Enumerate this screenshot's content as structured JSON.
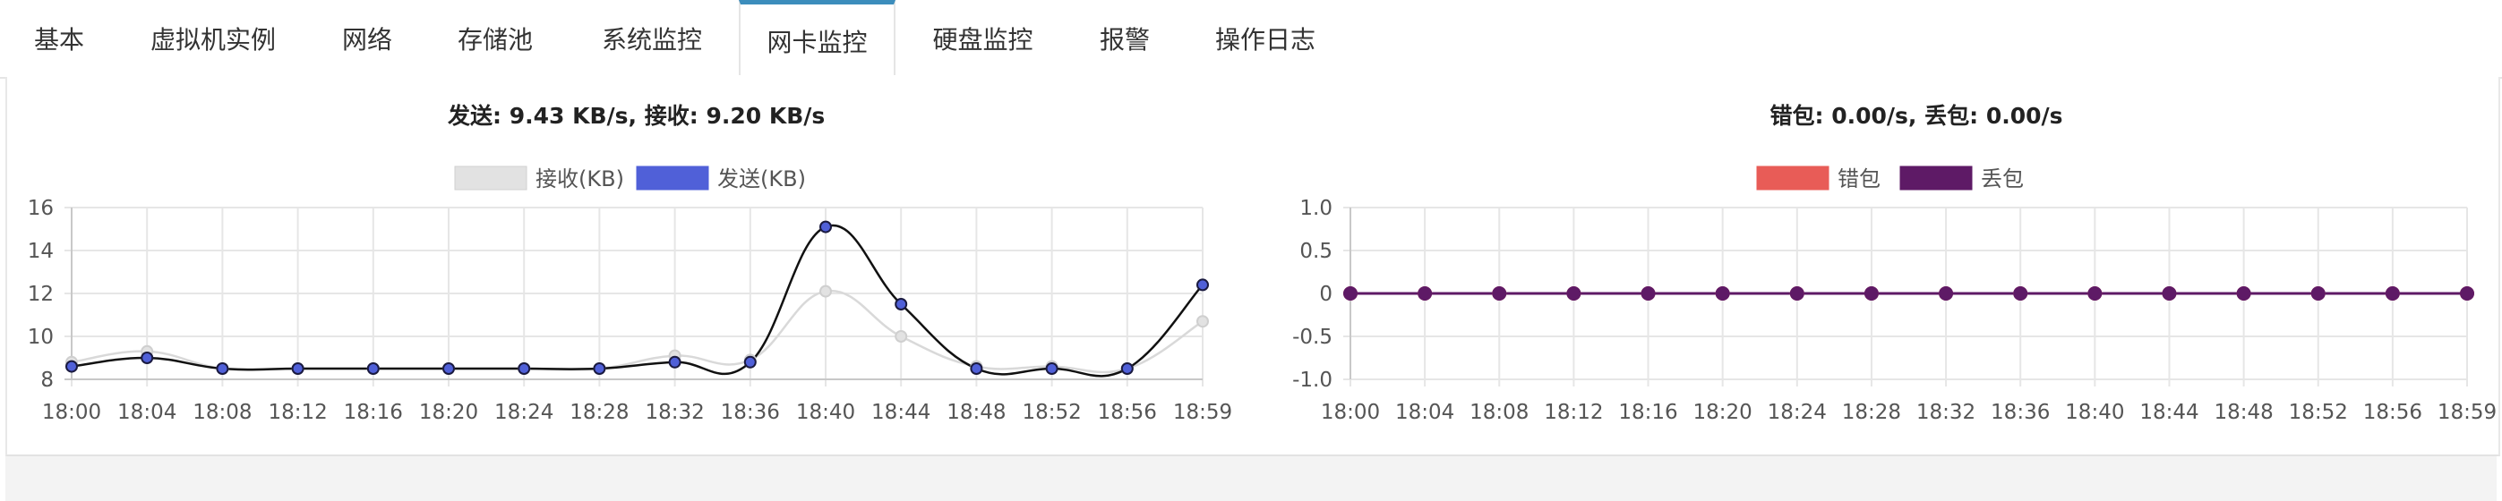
{
  "tabs": [
    {
      "label": "基本",
      "active": false
    },
    {
      "label": "虚拟机实例",
      "active": false
    },
    {
      "label": "网络",
      "active": false
    },
    {
      "label": "存储池",
      "active": false
    },
    {
      "label": "系统监控",
      "active": false
    },
    {
      "label": "网卡监控",
      "active": true
    },
    {
      "label": "硬盘监控",
      "active": false
    },
    {
      "label": "报警",
      "active": false
    },
    {
      "label": "操作日志",
      "active": false
    }
  ],
  "traffic": {
    "send_label": "发送:",
    "send_value": "9.43 KB/s",
    "sep": ",",
    "recv_label": "接收:",
    "recv_value": "9.20 KB/s"
  },
  "errors": {
    "err_label": "错包:",
    "err_value": "0.00/s",
    "sep": ",",
    "drop_label": "丢包:",
    "drop_value": "0.00/s"
  },
  "chart_data": [
    {
      "type": "line",
      "x": [
        "18:00",
        "18:04",
        "18:08",
        "18:12",
        "18:16",
        "18:20",
        "18:24",
        "18:28",
        "18:32",
        "18:36",
        "18:40",
        "18:44",
        "18:48",
        "18:52",
        "18:56",
        "18:59"
      ],
      "series": [
        {
          "name": "接收(KB)",
          "color": "#e2e2e2",
          "stroke": "#d9d9d9",
          "values": [
            8.8,
            9.3,
            8.5,
            8.5,
            8.5,
            8.5,
            8.5,
            8.5,
            9.1,
            8.9,
            12.1,
            10.0,
            8.6,
            8.6,
            8.5,
            10.7
          ]
        },
        {
          "name": "发送(KB)",
          "color": "#5060d8",
          "stroke": "#111111",
          "values": [
            8.6,
            9.0,
            8.5,
            8.5,
            8.5,
            8.5,
            8.5,
            8.5,
            8.8,
            8.8,
            15.1,
            11.5,
            8.5,
            8.5,
            8.5,
            12.4
          ]
        }
      ],
      "ylim": [
        8,
        16
      ],
      "yticks": [
        "8",
        "10",
        "12",
        "14",
        "16"
      ],
      "grid": true,
      "legend": "top-center"
    },
    {
      "type": "line",
      "x": [
        "18:00",
        "18:04",
        "18:08",
        "18:12",
        "18:16",
        "18:20",
        "18:24",
        "18:28",
        "18:32",
        "18:36",
        "18:40",
        "18:44",
        "18:48",
        "18:52",
        "18:56",
        "18:59"
      ],
      "series": [
        {
          "name": "错包",
          "color": "#e85c57",
          "stroke": "#e85c57",
          "values": [
            0,
            0,
            0,
            0,
            0,
            0,
            0,
            0,
            0,
            0,
            0,
            0,
            0,
            0,
            0,
            0
          ]
        },
        {
          "name": "丢包",
          "color": "#5e1a66",
          "stroke": "#5e1a66",
          "values": [
            0,
            0,
            0,
            0,
            0,
            0,
            0,
            0,
            0,
            0,
            0,
            0,
            0,
            0,
            0,
            0
          ]
        }
      ],
      "ylim": [
        -1.0,
        1.0
      ],
      "yticks": [
        "1.0",
        "0.5",
        "0",
        "-0.5",
        "-1.0"
      ],
      "grid": true,
      "legend": "top-center"
    }
  ]
}
